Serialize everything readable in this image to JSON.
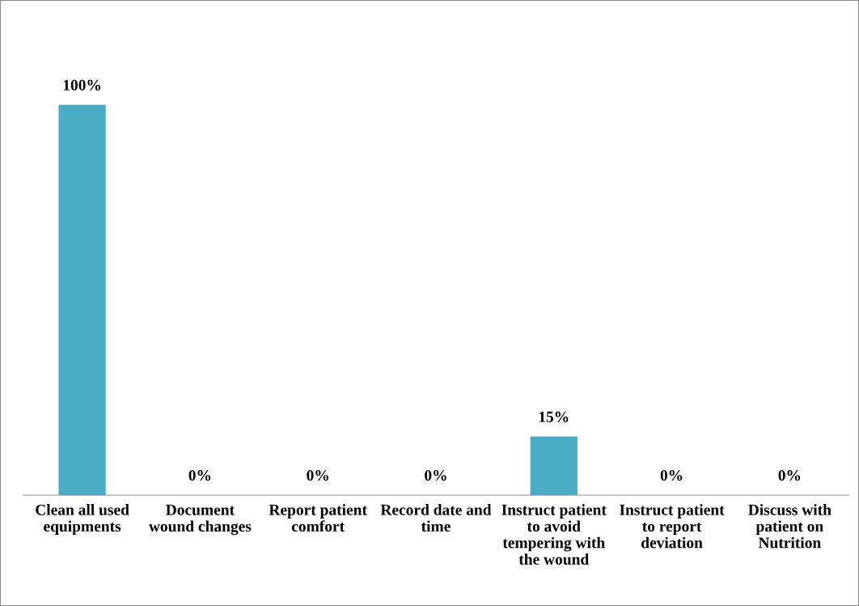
{
  "chart_data": {
    "type": "bar",
    "categories": [
      "Clean all used\nequipments",
      "Document\nwound changes",
      "Report patient\ncomfort",
      "Record date and\ntime",
      "Instruct patient\nto avoid\ntempering with\nthe wound",
      "Instruct patient\nto report\ndeviation",
      "Discuss with\npatient on\nNutrition"
    ],
    "values": [
      100,
      0,
      0,
      0,
      15,
      0,
      0
    ],
    "value_labels": [
      "100%",
      "0%",
      "0%",
      "0%",
      "15%",
      "0%",
      "0%"
    ],
    "color": "#4bacc6",
    "grid": false,
    "legend": false,
    "tick_labels": "x"
  }
}
